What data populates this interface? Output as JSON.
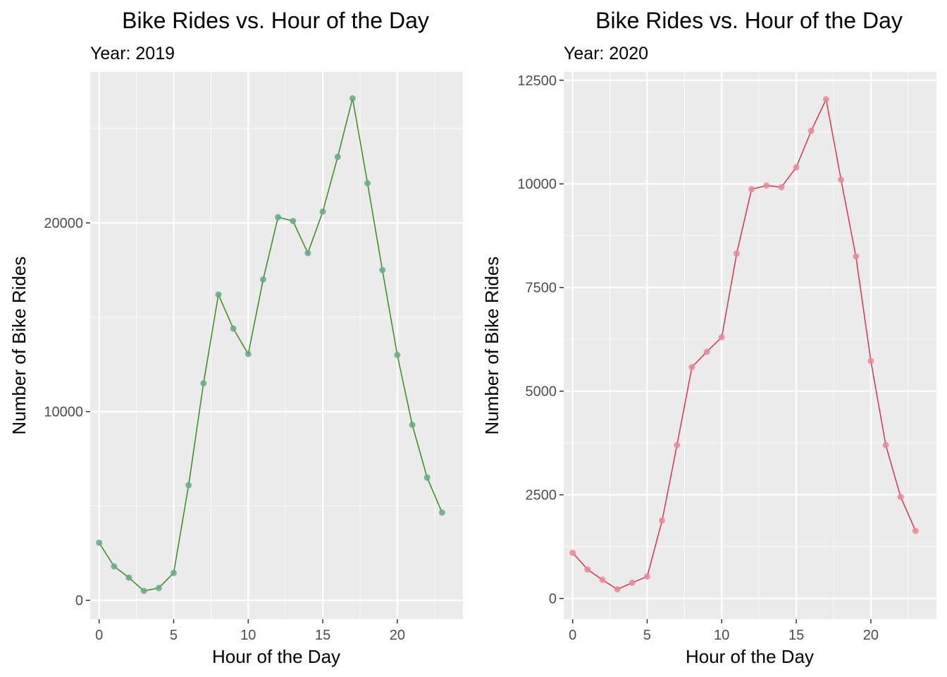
{
  "chart_data": [
    {
      "type": "line",
      "title": "Bike Rides vs. Hour of the Day",
      "subtitle": "Year: 2019",
      "xlabel": "Hour of the Day",
      "ylabel": "Number of Bike Rides",
      "x_ticks": [
        "0",
        "5",
        "10",
        "15",
        "20"
      ],
      "y_ticks": [
        "0",
        "10000",
        "20000"
      ],
      "xlim": [
        -0.6,
        24.4
      ],
      "ylim": [
        -1000,
        28000
      ],
      "grid": true,
      "color": "#3a8a1e",
      "point_color": "#6aa88a",
      "series": [
        {
          "x": [
            0,
            1,
            2,
            3,
            4,
            5,
            6,
            7,
            8,
            9,
            10,
            11,
            12,
            13,
            14,
            15,
            16,
            17,
            18,
            19,
            20,
            21,
            22,
            23
          ],
          "values": [
            3050,
            1800,
            1200,
            500,
            650,
            1450,
            6100,
            11500,
            16200,
            14400,
            13050,
            17000,
            20300,
            20100,
            18400,
            20600,
            23500,
            26600,
            22100,
            17500,
            13000,
            9300,
            6500,
            4650
          ]
        }
      ]
    },
    {
      "type": "line",
      "title": "Bike Rides vs. Hour of the Day",
      "subtitle": "Year: 2020",
      "xlabel": "Hour of the Day",
      "ylabel": "Number of Bike Rides",
      "x_ticks": [
        "0",
        "5",
        "10",
        "15",
        "20"
      ],
      "y_ticks": [
        "0",
        "2500",
        "5000",
        "7500",
        "10000",
        "12500"
      ],
      "xlim": [
        -0.6,
        24.4
      ],
      "ylim": [
        -500,
        12700
      ],
      "grid": true,
      "color": "#d6344f",
      "point_color": "#e8889a",
      "series": [
        {
          "x": [
            0,
            1,
            2,
            3,
            4,
            5,
            6,
            7,
            8,
            9,
            10,
            11,
            12,
            13,
            14,
            15,
            16,
            17,
            18,
            19,
            20,
            21,
            22,
            23
          ],
          "values": [
            1100,
            700,
            450,
            220,
            380,
            530,
            1880,
            3700,
            5580,
            5950,
            6300,
            8320,
            9870,
            9960,
            9920,
            10400,
            11280,
            12040,
            10100,
            8250,
            5730,
            3700,
            2450,
            1630
          ]
        }
      ]
    }
  ]
}
